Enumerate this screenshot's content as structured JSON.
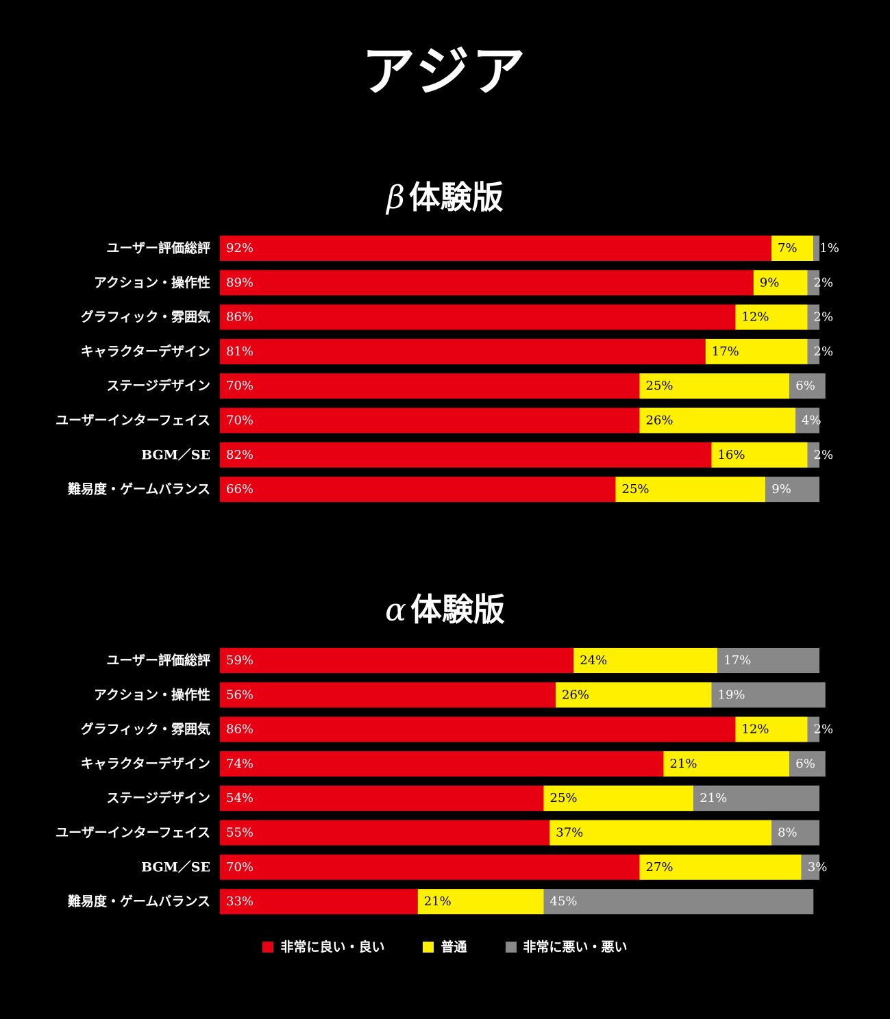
{
  "title": "アジア",
  "colors": {
    "good": "#e60012",
    "normal": "#fff000",
    "bad": "#888888",
    "background": "#000000"
  },
  "legend": [
    {
      "key": "good",
      "label": "非常に良い・良い"
    },
    {
      "key": "normal",
      "label": "普通"
    },
    {
      "key": "bad",
      "label": "非常に悪い・悪い"
    }
  ],
  "chart_data": [
    {
      "type": "bar",
      "orientation": "horizontal",
      "stacked": true,
      "title": "β体験版",
      "title_symbol": "β",
      "title_text": "体験版",
      "xlim": [
        0,
        100
      ],
      "categories": [
        "ユーザー評価総評",
        "アクション・操作性",
        "グラフィック・雰囲気",
        "キャラクターデザイン",
        "ステージデザイン",
        "ユーザーインターフェイス",
        "BGM／SE",
        "難易度・ゲームバランス"
      ],
      "series": [
        {
          "name": "非常に良い・良い",
          "key": "good",
          "values": [
            92,
            89,
            86,
            81,
            70,
            70,
            82,
            66
          ]
        },
        {
          "name": "普通",
          "key": "normal",
          "values": [
            7,
            9,
            12,
            17,
            25,
            26,
            16,
            25
          ]
        },
        {
          "name": "非常に悪い・悪い",
          "key": "bad",
          "values": [
            1,
            2,
            2,
            2,
            6,
            4,
            2,
            9
          ]
        }
      ]
    },
    {
      "type": "bar",
      "orientation": "horizontal",
      "stacked": true,
      "title": "α体験版",
      "title_symbol": "α",
      "title_text": "体験版",
      "xlim": [
        0,
        100
      ],
      "categories": [
        "ユーザー評価総評",
        "アクション・操作性",
        "グラフィック・雰囲気",
        "キャラクターデザイン",
        "ステージデザイン",
        "ユーザーインターフェイス",
        "BGM／SE",
        "難易度・ゲームバランス"
      ],
      "series": [
        {
          "name": "非常に良い・良い",
          "key": "good",
          "values": [
            59,
            56,
            86,
            74,
            54,
            55,
            70,
            33
          ]
        },
        {
          "name": "普通",
          "key": "normal",
          "values": [
            24,
            26,
            12,
            21,
            25,
            37,
            27,
            21
          ]
        },
        {
          "name": "非常に悪い・悪い",
          "key": "bad",
          "values": [
            17,
            19,
            2,
            6,
            21,
            8,
            3,
            45
          ]
        }
      ]
    }
  ]
}
